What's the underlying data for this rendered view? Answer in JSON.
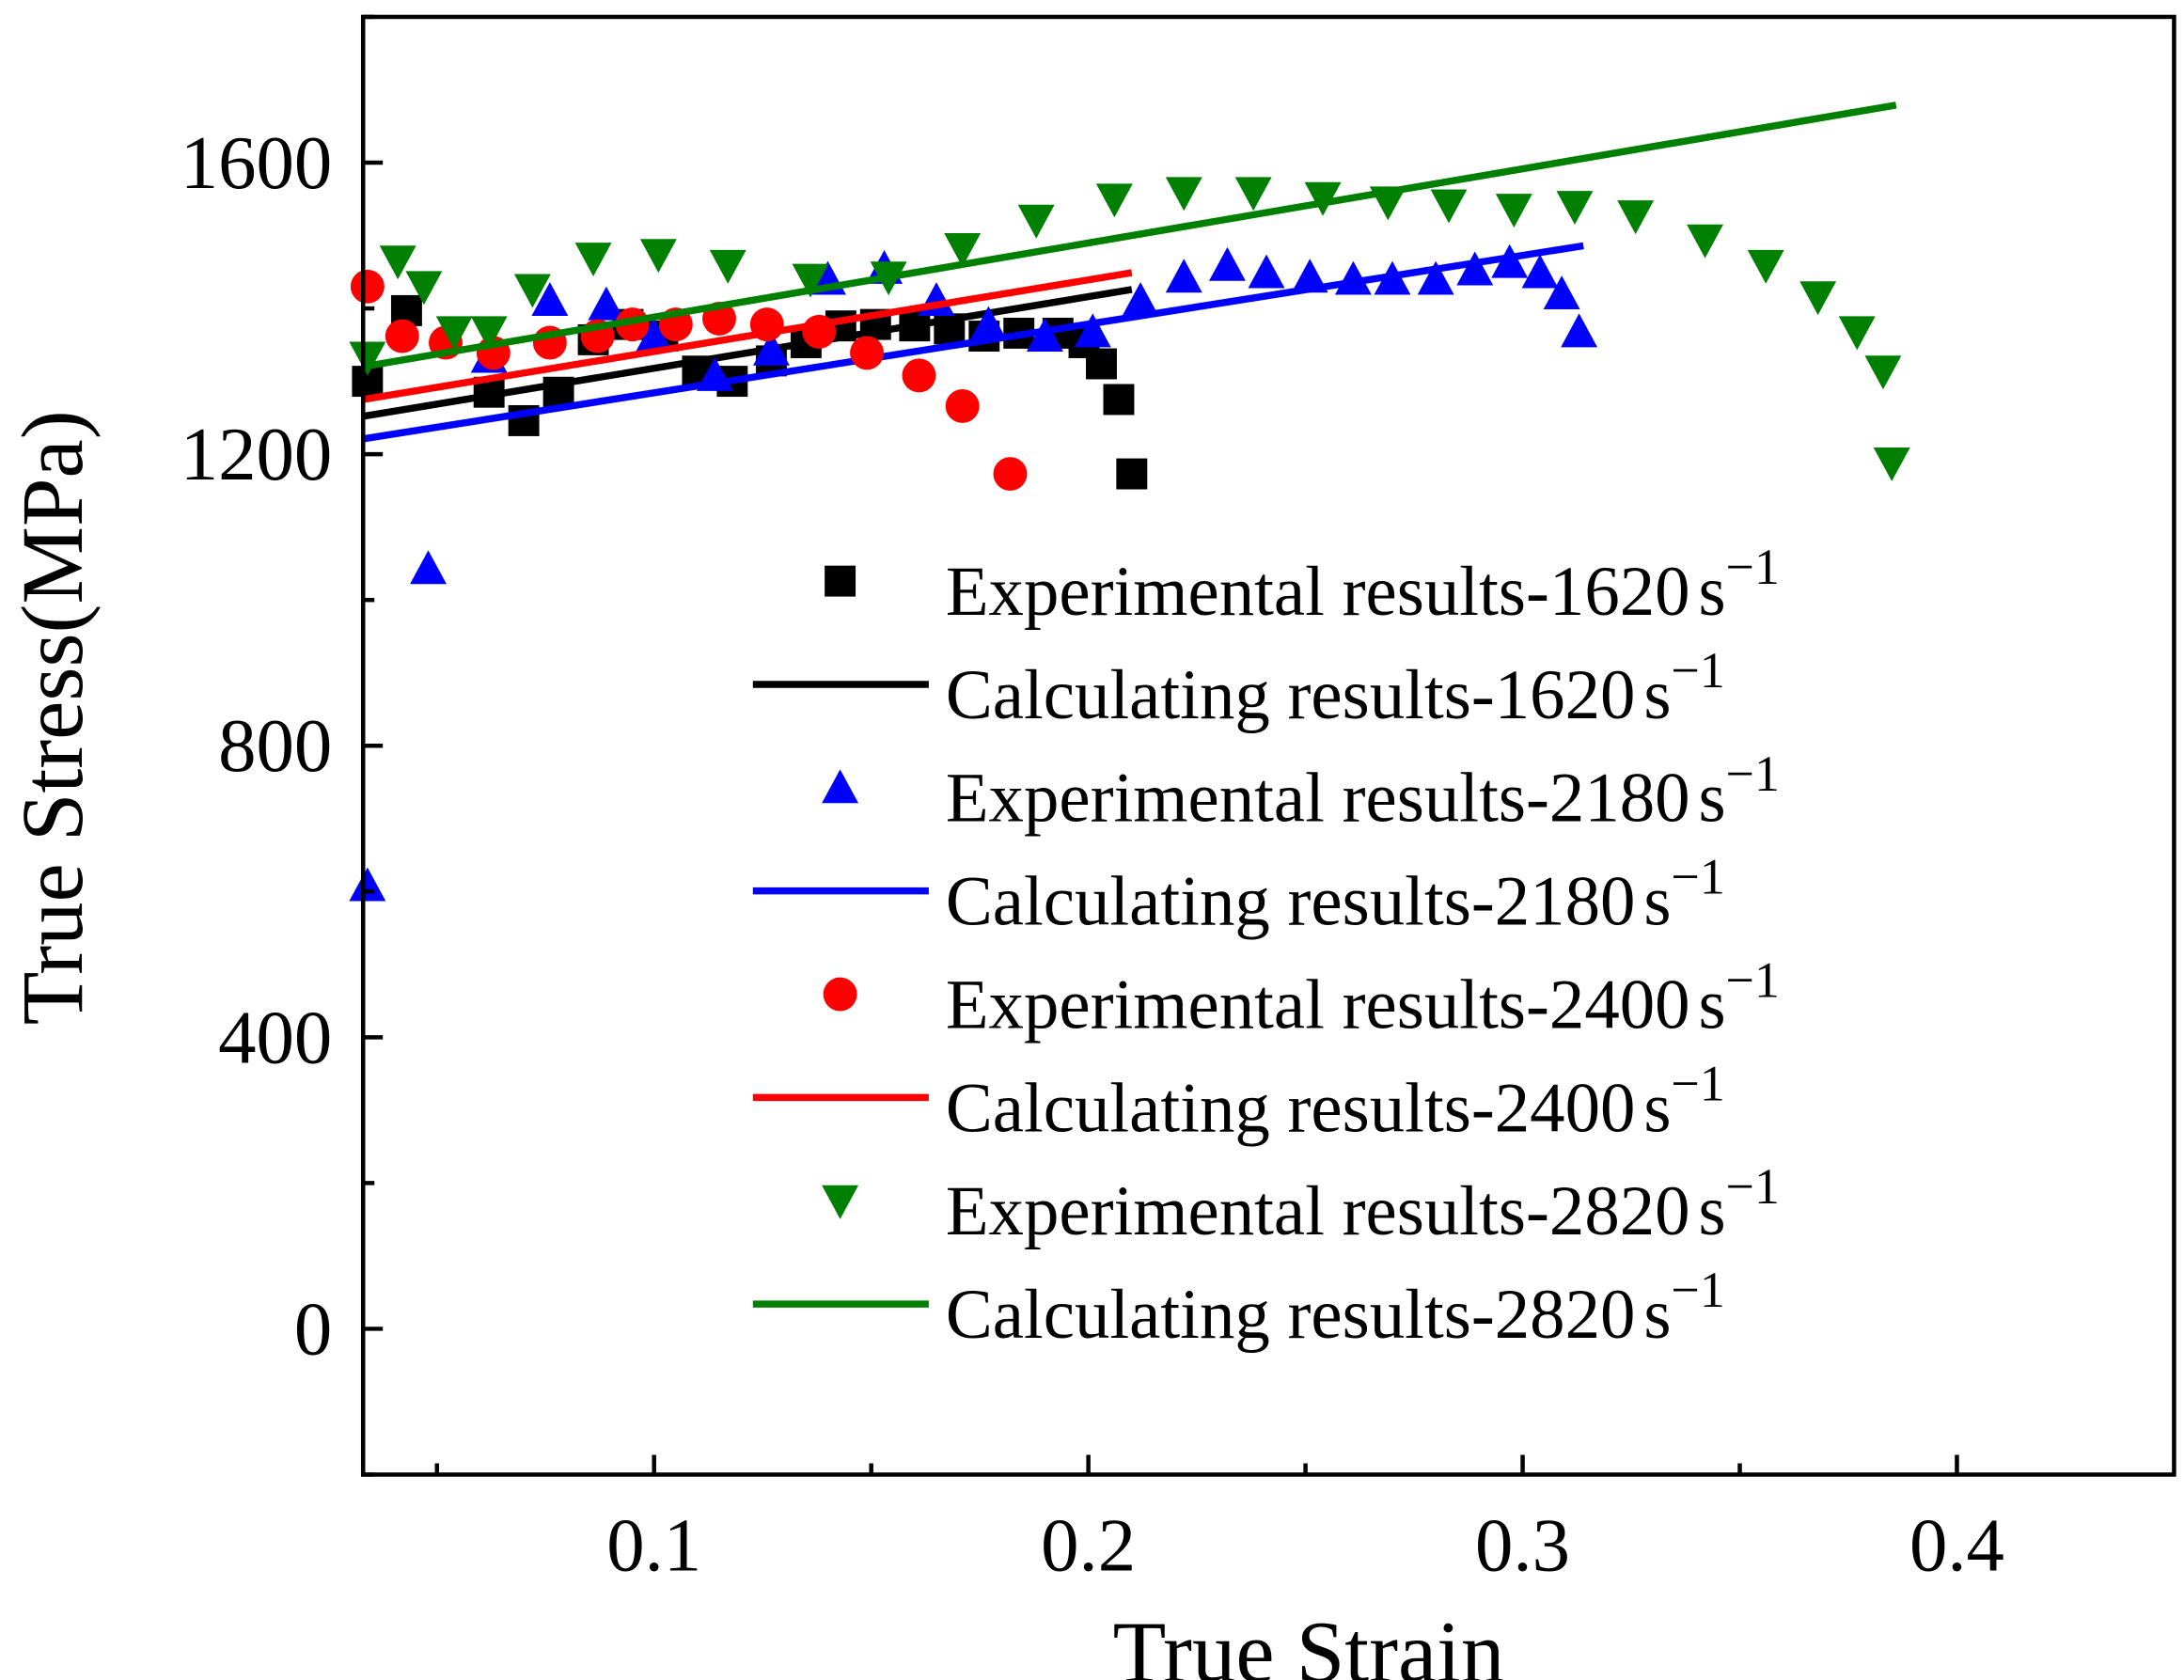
{
  "chart_data": {
    "type": "scatter",
    "xlabel": "True Strain",
    "ylabel": "True Stress(MPa)",
    "xlim": [
      0.033,
      0.45
    ],
    "ylim": [
      -200,
      1800
    ],
    "xticks": [
      0.1,
      0.2,
      0.3,
      0.4
    ],
    "xtick_labels": [
      "0.1",
      "0.2",
      "0.3",
      "0.4"
    ],
    "yticks": [
      0,
      400,
      800,
      1200,
      1600
    ],
    "ytick_labels": [
      "0",
      "400",
      "800",
      "1200",
      "1600"
    ],
    "grid": false,
    "legend_position": "center-right",
    "series": [
      {
        "name": "Experimental results-1620",
        "unit": "s",
        "exp": "−1",
        "kind": "scatter",
        "marker": "square",
        "color": "#000000",
        "x": [
          0.034,
          0.043,
          0.062,
          0.07,
          0.078,
          0.086,
          0.094,
          0.102,
          0.11,
          0.118,
          0.127,
          0.135,
          0.143,
          0.151,
          0.16,
          0.168,
          0.176,
          0.184,
          0.193,
          0.199,
          0.203,
          0.207,
          0.21
        ],
        "y": [
          1300,
          1397,
          1285,
          1246,
          1285,
          1357,
          1378,
          1362,
          1314,
          1300,
          1328,
          1353,
          1376,
          1378,
          1376,
          1372,
          1362,
          1366,
          1366,
          1353,
          1324,
          1275,
          1173
        ]
      },
      {
        "name": "Calculating results-1620",
        "unit": "s",
        "exp": "−1",
        "kind": "line",
        "color": "#000000",
        "x": [
          0.033,
          0.21
        ],
        "y": [
          1252,
          1426
        ]
      },
      {
        "name": "Experimental results-2180",
        "unit": "s",
        "exp": "−1",
        "kind": "scatter",
        "marker": "triangle-up",
        "color": "#0000ff",
        "x": [
          0.034,
          0.048,
          0.062,
          0.076,
          0.089,
          0.1,
          0.114,
          0.127,
          0.14,
          0.153,
          0.165,
          0.177,
          0.19,
          0.201,
          0.212,
          0.222,
          0.232,
          0.241,
          0.251,
          0.261,
          0.27,
          0.28,
          0.289,
          0.297,
          0.304,
          0.309,
          0.313
        ],
        "y": [
          608,
          1043,
          1333,
          1411,
          1405,
          1362,
          1308,
          1343,
          1440,
          1455,
          1411,
          1378,
          1362,
          1368,
          1411,
          1443,
          1459,
          1449,
          1443,
          1440,
          1440,
          1440,
          1453,
          1463,
          1449,
          1420,
          1368
        ]
      },
      {
        "name": "Calculating results-2180",
        "unit": "s",
        "exp": "−1",
        "kind": "line",
        "color": "#0000ff",
        "x": [
          0.033,
          0.314
        ],
        "y": [
          1221,
          1486
        ]
      },
      {
        "name": "Experimental results-2400",
        "unit": "s",
        "exp": "−1",
        "kind": "scatter",
        "marker": "circle",
        "color": "#ff0000",
        "x": [
          0.034,
          0.042,
          0.052,
          0.063,
          0.076,
          0.087,
          0.095,
          0.105,
          0.115,
          0.126,
          0.138,
          0.149,
          0.161,
          0.171,
          0.182
        ],
        "y": [
          1430,
          1362,
          1353,
          1339,
          1353,
          1362,
          1378,
          1378,
          1386,
          1378,
          1368,
          1339,
          1308,
          1266,
          1173
        ]
      },
      {
        "name": "Calculating results-2400",
        "unit": "s",
        "exp": "−1",
        "kind": "line",
        "color": "#ff0000",
        "x": [
          0.033,
          0.21
        ],
        "y": [
          1275,
          1449
        ]
      },
      {
        "name": "Experimental results-2820",
        "unit": "s",
        "exp": "−1",
        "kind": "scatter",
        "marker": "triangle-down",
        "color": "#008000",
        "x": [
          0.034,
          0.041,
          0.047,
          0.054,
          0.062,
          0.072,
          0.086,
          0.101,
          0.117,
          0.136,
          0.154,
          0.171,
          0.188,
          0.206,
          0.222,
          0.238,
          0.254,
          0.269,
          0.283,
          0.298,
          0.312,
          0.326,
          0.342,
          0.356,
          0.368,
          0.377,
          0.383,
          0.385
        ],
        "y": [
          1333,
          1465,
          1430,
          1368,
          1368,
          1426,
          1469,
          1474,
          1459,
          1440,
          1443,
          1482,
          1521,
          1550,
          1559,
          1559,
          1552,
          1546,
          1542,
          1536,
          1540,
          1527,
          1494,
          1459,
          1416,
          1368,
          1314,
          1188
        ]
      },
      {
        "name": "Calculating results-2820",
        "unit": "s",
        "exp": "−1",
        "kind": "line",
        "color": "#008000",
        "x": [
          0.033,
          0.386
        ],
        "y": [
          1320,
          1679
        ]
      }
    ]
  }
}
